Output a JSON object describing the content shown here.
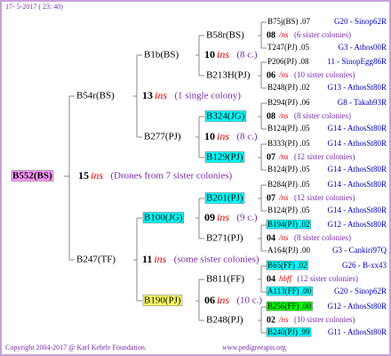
{
  "header": {
    "date": "17- 5-2017 ( 23: 40)"
  },
  "root": {
    "label": "B552(BS)",
    "highlight": "#ff99ff",
    "count": "15",
    "marker": "ins",
    "note": "(Drones from 7 sister colonies)"
  },
  "parents": [
    {
      "label": "B54r(BS)",
      "count": "13",
      "marker": "ins",
      "note": "(1 single colony)"
    },
    {
      "label": "B247(TF)",
      "count": "11",
      "marker": "ins",
      "note": "(some sister colonies)"
    }
  ],
  "grandparents": [
    {
      "label": "B1b(BS)",
      "count": "10",
      "marker": "ins",
      "note": "(8 c.)"
    },
    {
      "label": "B277(PJ)",
      "count": "10",
      "marker": "ins",
      "note": "(8 c.)"
    },
    {
      "label": "B100(JG)",
      "highlight": "#00ffff",
      "count": "09",
      "marker": "ins",
      "note": "(9 c.)"
    },
    {
      "label": "B190(PJ)",
      "highlight": "#ffff66",
      "count": "06",
      "marker": "ins",
      "note": "(10 c.)"
    }
  ],
  "great_grandparents": [
    {
      "label": "B58r(BS)",
      "father": {
        "label": "B75j(BS) .07",
        "origin": "G20 - Sinop62R"
      },
      "mating": {
        "count": "08",
        "marker": "/ns",
        "note": "(6 sister colonies)"
      },
      "mother": {
        "label": "T247(PJ) .05",
        "origin": "G3 - Athos00R"
      }
    },
    {
      "label": "B213H(PJ)",
      "father": {
        "label": "P206(PJ) .08",
        "origin": "11 - SinopEgg86R"
      },
      "mating": {
        "count": "06",
        "marker": "/ns",
        "note": "(10 sister colonies)"
      },
      "mother": {
        "label": "B248(PJ) .02",
        "origin": "G13 - AthosSt80R"
      }
    },
    {
      "label": "B324(JG)",
      "highlight": "#00ffff",
      "father": {
        "label": "B294(PJ) .06",
        "origin": "G8 - Takab93R"
      },
      "mating": {
        "count": "08",
        "marker": "/ns",
        "note": "(8 sister colonies)"
      },
      "mother": {
        "label": "B124(PJ) .05",
        "origin": "G14 - AthosSt80R"
      }
    },
    {
      "label": "B129(PJ)",
      "highlight": "#00ffff",
      "father": {
        "label": "B333(PJ) .05",
        "origin": "G14 - AthosSt80R"
      },
      "mating": {
        "count": "07",
        "marker": "/ns",
        "note": "(12 sister colonies)"
      },
      "mother": {
        "label": "B124(PJ) .05",
        "origin": "G14 - AthosSt80R"
      }
    },
    {
      "label": "B201(PJ)",
      "highlight": "#00ffff",
      "father": {
        "label": "B284(PJ) .05",
        "origin": "G14 - AthosSt80R"
      },
      "mating": {
        "count": "07",
        "marker": "/ns",
        "note": "(12 sister colonies)"
      },
      "mother": {
        "label": "B124(PJ) .05",
        "origin": "G14 - AthosSt80R"
      }
    },
    {
      "label": "B271(PJ)",
      "father": {
        "label": "B194(PJ) .02",
        "highlight": "#00ffff",
        "origin": "G12 - AthosSt80R"
      },
      "mating": {
        "count": "04",
        "marker": "/ns",
        "note": "(8 sister colonies)"
      },
      "mother": {
        "label": "A164(PJ) .00",
        "origin": "G3 - Cankiri97Q"
      }
    },
    {
      "label": "B811(FF)",
      "father": {
        "label": "B65(FF) .02",
        "highlight": "#00ffff",
        "origin": "G26 - B-xx43"
      },
      "mating": {
        "count": "04",
        "marker": "hbff",
        "note": "(12 sister colonies)"
      },
      "mother": {
        "label": "A113(FF) .00",
        "highlight": "#00ffff",
        "origin": "G20 - Sinop62R"
      }
    },
    {
      "label": "B248(PJ)",
      "father": {
        "label": "B256(FF) .00",
        "highlight": "#00ff00",
        "origin": "G12 - AthosSt80R"
      },
      "mating": {
        "count": "02",
        "marker": "/ns",
        "note": "(10 sister colonies)"
      },
      "mother": {
        "label": "B240(PJ) .99",
        "highlight": "#00ffff",
        "origin": "G11 - AthosSt80R"
      }
    }
  ],
  "footer": {
    "copyright": "Copyright 2004-2017 @ Karl Kehrle Foundation.",
    "website": "www.pedigreeapis.org"
  }
}
